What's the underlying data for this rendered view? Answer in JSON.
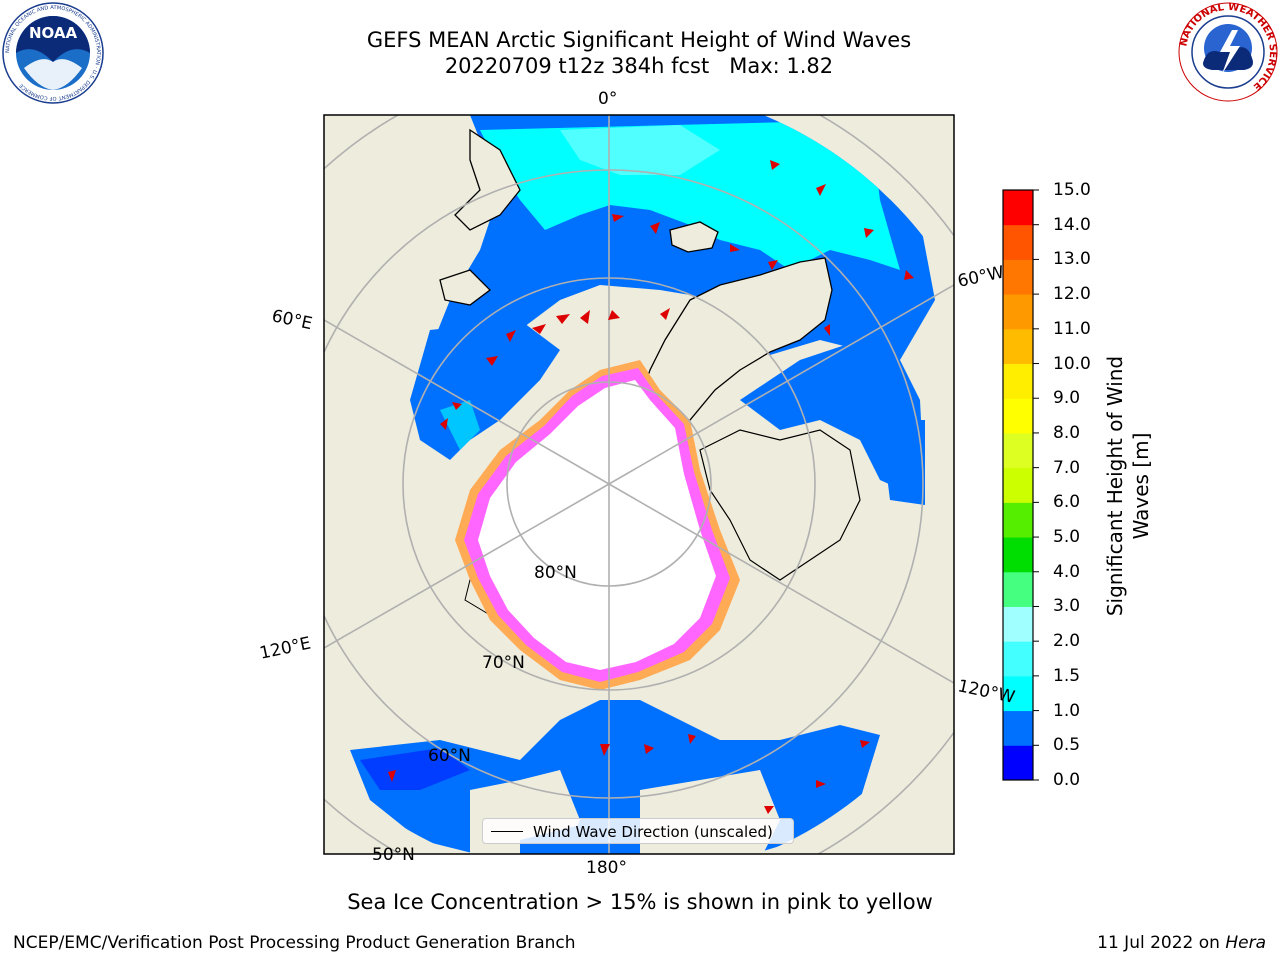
{
  "title": {
    "line1": "GEFS MEAN Arctic Significant Height of Wind Waves",
    "line2": "20220709 t12z 384h fcst   Max: 1.82"
  },
  "map": {
    "projection": "north-polar-stereographic",
    "longitude_labels": {
      "lon_0": "0°",
      "lon_60w": "60°W",
      "lon_60e": "60°E",
      "lon_120e": "120°E",
      "lon_120w": "120°W",
      "lon_180": "180°"
    },
    "latitude_labels": {
      "lat_80": "80°N",
      "lat_70": "70°N",
      "lat_60": "60°N",
      "lat_50": "50°N"
    },
    "colors": {
      "land": "#eeecdc",
      "ice_free_low": "#0070ff",
      "ice_free_mid": "#00ffff",
      "ice_edge_pink": "#ff66ff",
      "ice_edge_orange": "#ffaa55",
      "pack_ice": "#ffffff",
      "arrow": "#dd0000",
      "grid": "#b0b0b0"
    }
  },
  "legend": {
    "label": "Wind Wave Direction (unscaled)"
  },
  "colorbar": {
    "label": "Significant Height of Wind Waves [m]",
    "label_line1": "Significant Height of Wind",
    "label_line2": "Waves [m]",
    "ticks": [
      "15.0",
      "14.0",
      "13.0",
      "12.0",
      "11.0",
      "10.0",
      "9.0",
      "8.0",
      "7.0",
      "6.0",
      "5.0",
      "4.0",
      "3.0",
      "2.0",
      "1.5",
      "1.0",
      "0.5",
      "0.0"
    ],
    "bins": [
      {
        "from": 0.0,
        "to": 0.5,
        "color": "#0000ff"
      },
      {
        "from": 0.5,
        "to": 1.0,
        "color": "#0070ff"
      },
      {
        "from": 1.0,
        "to": 1.5,
        "color": "#00ffff"
      },
      {
        "from": 1.5,
        "to": 2.0,
        "color": "#44ffff"
      },
      {
        "from": 2.0,
        "to": 3.0,
        "color": "#a0ffff"
      },
      {
        "from": 3.0,
        "to": 4.0,
        "color": "#44ff80"
      },
      {
        "from": 4.0,
        "to": 5.0,
        "color": "#00dd00"
      },
      {
        "from": 5.0,
        "to": 6.0,
        "color": "#55ee00"
      },
      {
        "from": 6.0,
        "to": 7.0,
        "color": "#ccff00"
      },
      {
        "from": 7.0,
        "to": 8.0,
        "color": "#ddff22"
      },
      {
        "from": 8.0,
        "to": 9.0,
        "color": "#ffff00"
      },
      {
        "from": 9.0,
        "to": 10.0,
        "color": "#ffee00"
      },
      {
        "from": 10.0,
        "to": 11.0,
        "color": "#ffbb00"
      },
      {
        "from": 11.0,
        "to": 12.0,
        "color": "#ff9900"
      },
      {
        "from": 12.0,
        "to": 13.0,
        "color": "#ff7700"
      },
      {
        "from": 13.0,
        "to": 14.0,
        "color": "#ff5500"
      },
      {
        "from": 14.0,
        "to": 15.0,
        "color": "#ff0000"
      }
    ]
  },
  "caption": "Sea Ice Concentration > 15% is shown in pink to yellow",
  "footer": {
    "left": "NCEP/EMC/Verification Post Processing Product Generation Branch",
    "right_date": "11 Jul 2022 on ",
    "right_host": "Hera"
  },
  "logos": {
    "noaa": {
      "text": "NOAA",
      "ring_text": "NATIONAL OCEANIC AND ATMOSPHERIC ADMINISTRATION · U.S. DEPARTMENT OF COMMERCE"
    },
    "nws": {
      "ring_text": "NATIONAL WEATHER SERVICE"
    }
  }
}
